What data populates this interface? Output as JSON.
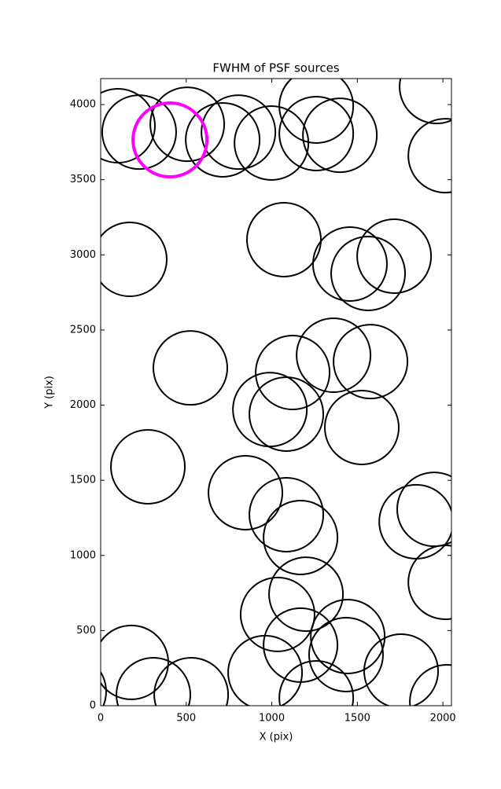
{
  "chart_data": {
    "type": "scatter",
    "title": "FWHM of PSF sources",
    "x_label": "X (pix)",
    "y_label": "Y (pix)",
    "xlim": [
      0,
      2050
    ],
    "ylim": [
      0,
      4173
    ],
    "xticks": [
      0,
      500,
      1000,
      1500,
      2000
    ],
    "yticks": [
      0,
      500,
      1000,
      1500,
      2000,
      2500,
      3000,
      3500,
      4000
    ],
    "series": [
      {
        "color": "#000000",
        "x": [
          101,
          225,
          506,
          713,
          805,
          998,
          1260,
          1260,
          1398,
          1963,
          2014,
          170,
          1071,
          1457,
          1563,
          1715,
          524,
          1122,
          1361,
          1577,
          989,
          1085,
          1526,
          276,
          846,
          1085,
          1168,
          1949,
          1844,
          2014,
          1200,
          1034,
          1444,
          1168,
          1434,
          1756,
          961,
          1260,
          2023,
          179,
          -184,
          308,
          529
        ],
        "values": [
          3859,
          3817,
          3869,
          3765,
          3817,
          3744,
          3990,
          3807,
          3796,
          4120,
          3660,
          2970,
          3101,
          2939,
          2876,
          2991,
          2248,
          2217,
          2332,
          2290,
          1971,
          1940,
          1851,
          1590,
          1417,
          1271,
          1119,
          1307,
          1224,
          821,
          742,
          607,
          460,
          403,
          340,
          230,
          220,
          52,
          26,
          288,
          94,
          73,
          73
        ]
      },
      {
        "color": "#ff00ff",
        "x": [
          405
        ],
        "values": [
          3765
        ]
      }
    ]
  }
}
